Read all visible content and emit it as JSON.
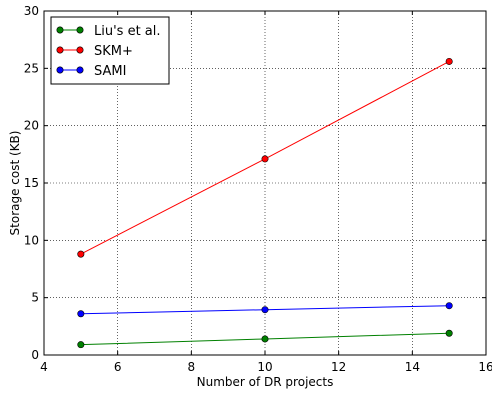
{
  "chart_data": {
    "type": "line",
    "title": "",
    "xlabel": "Number of DR projects",
    "ylabel": "Storage cost (KB)",
    "xlim": [
      4,
      16
    ],
    "ylim": [
      0,
      30
    ],
    "xticks": [
      4,
      6,
      8,
      10,
      12,
      14,
      16
    ],
    "yticks": [
      0,
      5,
      10,
      15,
      20,
      25,
      30
    ],
    "grid": true,
    "legend_position": "top-left",
    "x": [
      5,
      10,
      15
    ],
    "series": [
      {
        "name": "Liu's et al.",
        "color": "#008000",
        "values": [
          0.9,
          1.4,
          1.9
        ]
      },
      {
        "name": "SKM+",
        "color": "#ff0000",
        "values": [
          8.8,
          17.1,
          25.6
        ]
      },
      {
        "name": "SAMI",
        "color": "#0000ff",
        "values": [
          3.6,
          3.95,
          4.3
        ]
      }
    ]
  }
}
